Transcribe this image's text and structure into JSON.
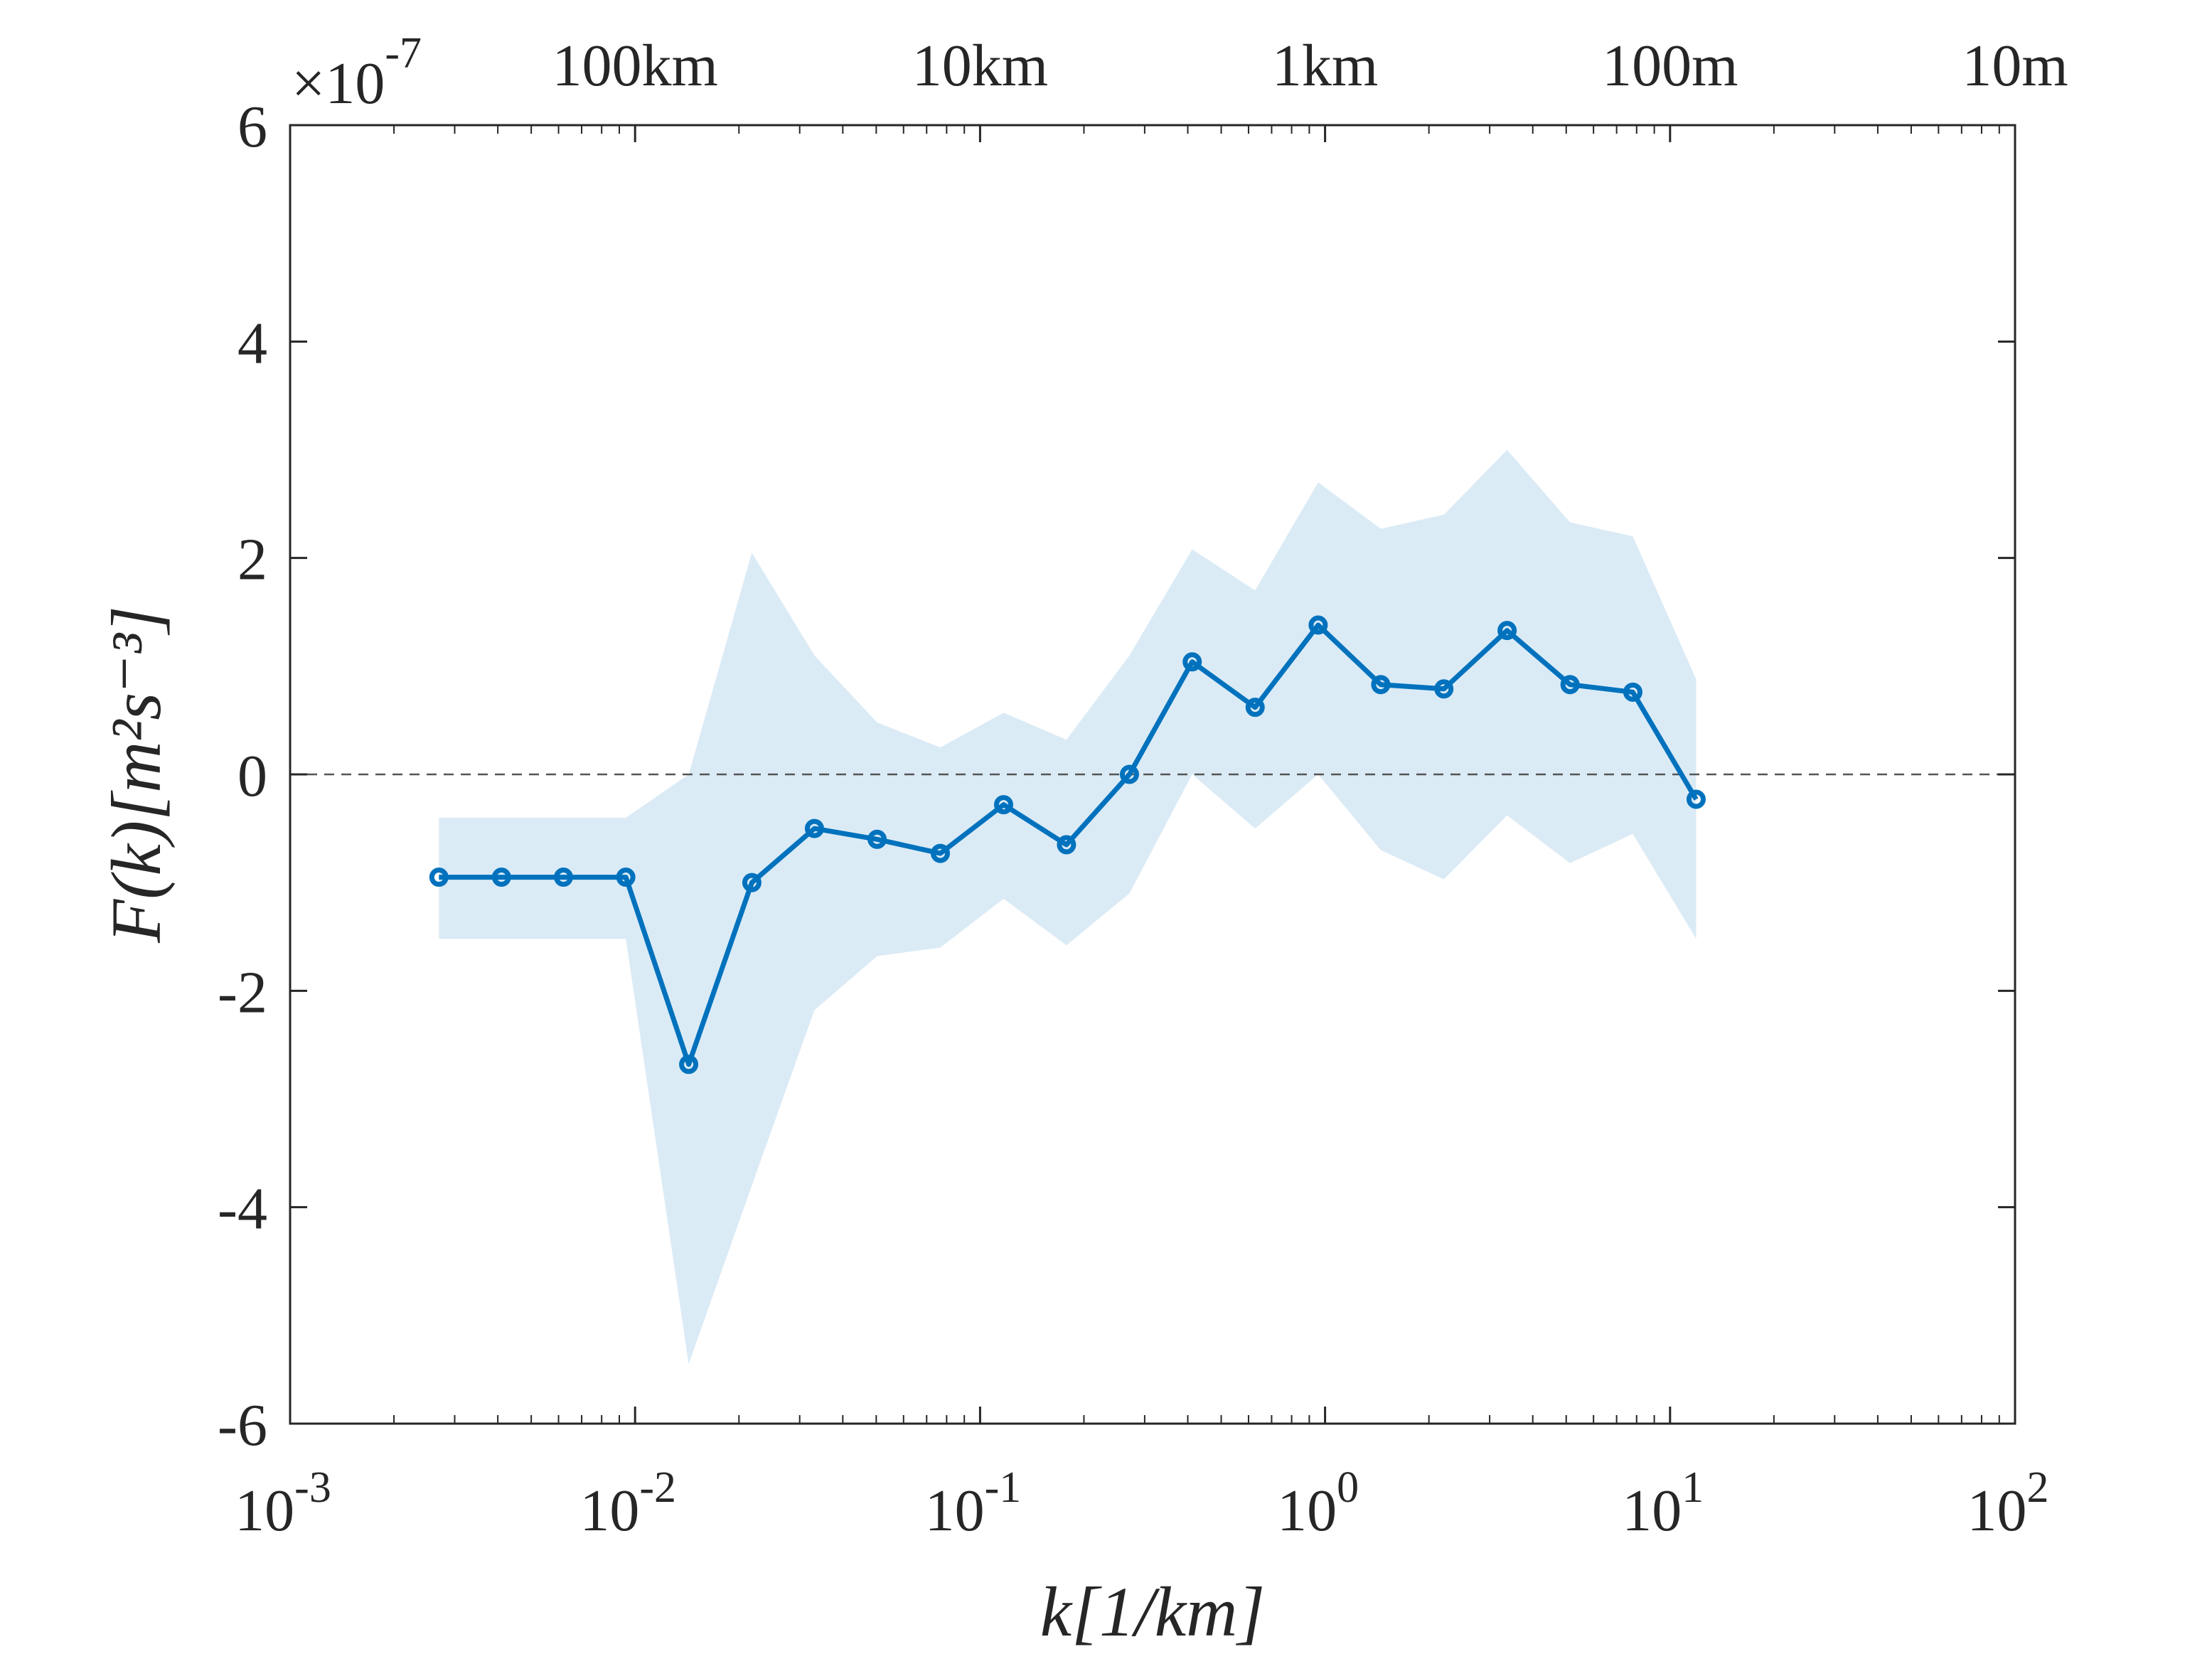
{
  "chart_data": {
    "type": "line",
    "xscale": "log",
    "xlim": [
      0.001,
      100
    ],
    "ylim": [
      -6e-07,
      6e-07
    ],
    "x_tick_values": [
      0.001,
      0.01,
      0.1,
      1,
      10,
      100
    ],
    "x_tick_labels": [
      {
        "base": "10",
        "exp": "-3"
      },
      {
        "base": "10",
        "exp": "-2"
      },
      {
        "base": "10",
        "exp": "-1"
      },
      {
        "base": "10",
        "exp": "0"
      },
      {
        "base": "10",
        "exp": "1"
      },
      {
        "base": "10",
        "exp": "2"
      }
    ],
    "y_tick_values": [
      -6e-07,
      -4e-07,
      -2e-07,
      0,
      2e-07,
      4e-07,
      6e-07
    ],
    "y_tick_labels": [
      "-6",
      "-4",
      "-2",
      "0",
      "2",
      "4",
      "6"
    ],
    "y_multiplier": {
      "prefix": "×10",
      "exp": "-7"
    },
    "top_axis": {
      "tick_values": [
        0.01,
        0.1,
        1,
        10,
        100
      ],
      "labels": [
        "100km",
        "10km",
        "1km",
        "100m",
        "10m"
      ]
    },
    "xlabel": "k[1/km]",
    "ylabel": "F(k)[m²s⁻³]",
    "grid": false,
    "reference_line": {
      "y": 0,
      "style": "dashed"
    },
    "series": [
      {
        "x": [
          0.0027,
          0.0041,
          0.0062,
          0.0094,
          0.0143,
          0.0218,
          0.0331,
          0.0503,
          0.0767,
          0.117,
          0.178,
          0.271,
          0.412,
          0.627,
          0.955,
          1.45,
          2.21,
          3.37,
          5.13,
          7.8,
          11.9
        ],
        "y": [
          -9.5e-08,
          -9.5e-08,
          -9.5e-08,
          -9.5e-08,
          -2.68e-07,
          -1e-07,
          -5e-08,
          -6e-08,
          -7.3e-08,
          -2.8e-08,
          -6.5e-08,
          0.0,
          1.04e-07,
          6.2e-08,
          1.38e-07,
          8.3e-08,
          7.9e-08,
          1.33e-07,
          8.3e-08,
          7.6e-08,
          -2.3e-08
        ],
        "upper": [
          -4e-08,
          -4e-08,
          -4e-08,
          -4e-08,
          0.0,
          2.05e-07,
          1.1e-07,
          4.8e-08,
          2.5e-08,
          5.7e-08,
          3.2e-08,
          1.1e-07,
          2.08e-07,
          1.7e-07,
          2.7e-07,
          2.27e-07,
          2.4e-07,
          3e-07,
          2.33e-07,
          2.2e-07,
          8.8e-08
        ],
        "lower": [
          -1.52e-07,
          -1.52e-07,
          -1.52e-07,
          -1.52e-07,
          -5.45e-07,
          -3.8e-07,
          -2.18e-07,
          -1.68e-07,
          -1.6e-07,
          -1.15e-07,
          -1.58e-07,
          -1.1e-07,
          0.0,
          -5e-08,
          0.0,
          -7e-08,
          -9.7e-08,
          -3.8e-08,
          -8.2e-08,
          -5.5e-08,
          -1.52e-07
        ]
      }
    ],
    "colors": {
      "line": "#0072BD",
      "band": "#0072BD",
      "axis": "#262626"
    }
  }
}
